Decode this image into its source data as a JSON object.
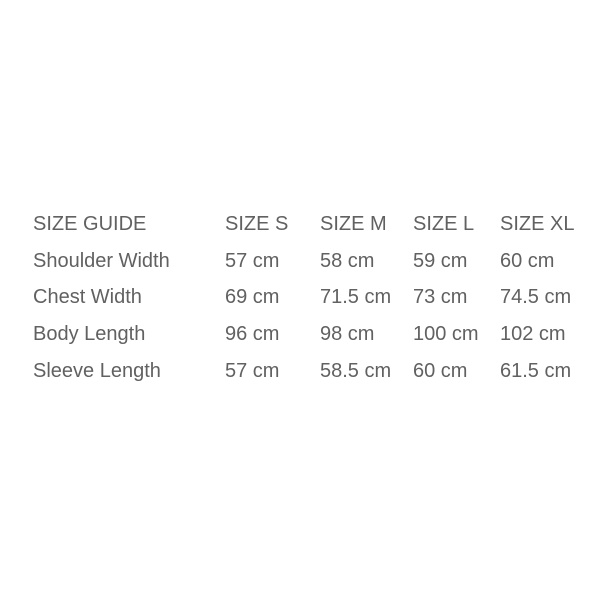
{
  "table": {
    "title": "SIZE GUIDE",
    "text_color": "#616161",
    "background_color": "#ffffff",
    "header": [
      "SIZE GUIDE",
      "SIZE S",
      "SIZE M",
      "SIZE L",
      "SIZE XL"
    ],
    "rows": [
      {
        "label": "Shoulder Width",
        "values": [
          "57 cm",
          "58 cm",
          "59 cm",
          "60 cm"
        ]
      },
      {
        "label": "Chest Width",
        "values": [
          "69 cm",
          "71.5 cm",
          "73 cm",
          "74.5 cm"
        ]
      },
      {
        "label": "Body Length",
        "values": [
          "96 cm",
          "98 cm",
          "100 cm",
          "102 cm"
        ]
      },
      {
        "label": "Sleeve Length",
        "values": [
          "57 cm",
          "58.5 cm",
          "60 cm",
          "61.5 cm"
        ]
      }
    ]
  }
}
